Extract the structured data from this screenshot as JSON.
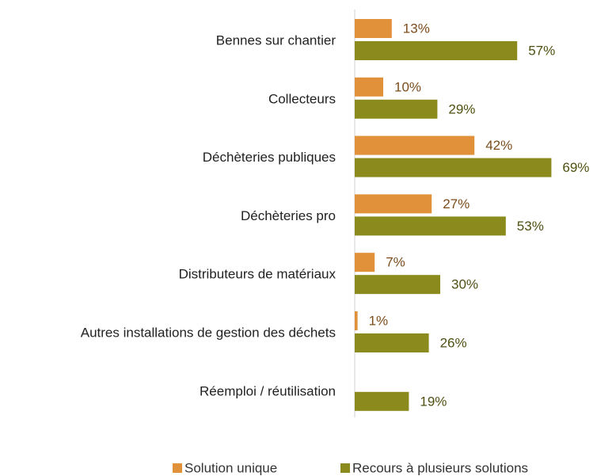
{
  "chart_data": {
    "type": "bar",
    "orientation": "horizontal",
    "categories": [
      "Bennes sur chantier",
      "Collecteurs",
      "Déchèteries publiques",
      "Déchèteries pro",
      "Distributeurs de matériaux",
      "Autres installations de gestion des déchets",
      "Réemploi / réutilisation"
    ],
    "series": [
      {
        "name": "Solution unique",
        "color": "#e0913a",
        "values": [
          13,
          10,
          42,
          27,
          7,
          1,
          null
        ],
        "value_labels": [
          "13%",
          "10%",
          "42%",
          "27%",
          "7%",
          "1%",
          null
        ]
      },
      {
        "name": "Recours à plusieurs solutions",
        "color": "#8a8b1c",
        "values": [
          57,
          29,
          69,
          53,
          30,
          26,
          19
        ],
        "value_labels": [
          "57%",
          "29%",
          "69%",
          "53%",
          "30%",
          "26%",
          "19%"
        ]
      }
    ],
    "legend": "bottom"
  }
}
